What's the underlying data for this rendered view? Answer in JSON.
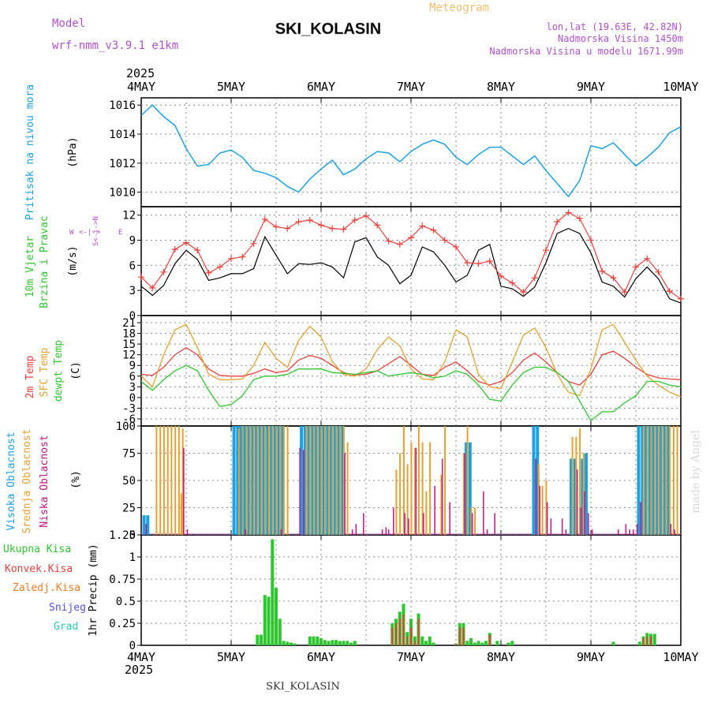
{
  "header": {
    "model_label": "Model",
    "model_name": "wrf-nmm_v3.9.1 e1km",
    "station": "SKI_KOLASIN",
    "app_title": "Meteogram",
    "lonlat": "lon,lat (19.63E, 42.82N)",
    "altitude": "Nadmorska Visina 1450m",
    "model_altitude": "Nadmorska Visina u modelu 1671.99m",
    "year_top": "2025",
    "year_bottom": "2025",
    "footer_station": "SKI_KOLASIN",
    "watermark": "made by Angel"
  },
  "colors": {
    "pressure": "#1ba1e2",
    "wind_speed": "#000000",
    "wind_gust": "#e8413a",
    "temp2m": "#e8413a",
    "sfc_temp": "#e6a030",
    "dewpt": "#2ec62e",
    "cloud_high": "#1ba1e2",
    "cloud_mid": "#e6a030",
    "cloud_low": "#c0157f",
    "precip_total": "#2ec62e",
    "precip_conv": "#e8413a",
    "precip_frozen": "#f07c24",
    "snow": "#5050e6",
    "graupel": "#28c8b4",
    "label_purple": "#b050d0",
    "label_gold": "#f0c070"
  },
  "chart_data": [
    {
      "type": "line",
      "name": "pressure",
      "ylabel": "(hPa)",
      "side_label": "Pritisak na nivou mora",
      "ylim": [
        1009,
        1016.5
      ],
      "yticks": [
        1010,
        1012,
        1014,
        1016
      ],
      "x_hours": [
        0,
        3,
        6,
        9,
        12,
        15,
        18,
        21,
        24,
        27,
        30,
        33,
        36,
        39,
        42,
        45,
        48,
        51,
        54,
        57,
        60,
        63,
        66,
        69,
        72,
        75,
        78,
        81,
        84,
        87,
        90,
        93,
        96,
        99,
        102,
        105,
        108,
        111,
        114,
        117,
        120,
        123,
        126,
        129,
        132,
        135,
        138,
        141,
        144
      ],
      "values": [
        1015.3,
        1016.0,
        1015.2,
        1014.6,
        1013.0,
        1011.8,
        1011.9,
        1012.7,
        1012.9,
        1012.4,
        1011.5,
        1011.3,
        1011.0,
        1010.4,
        1010.0,
        1010.9,
        1011.6,
        1012.2,
        1011.2,
        1011.6,
        1012.3,
        1012.8,
        1012.7,
        1012.1,
        1012.8,
        1013.3,
        1013.6,
        1013.3,
        1012.4,
        1011.9,
        1012.6,
        1013.1,
        1013.1,
        1012.5,
        1011.9,
        1012.5,
        1011.5,
        1010.6,
        1009.7,
        1010.8,
        1013.2,
        1013.0,
        1013.4,
        1012.6,
        1011.8,
        1012.4,
        1013.1,
        1014.1,
        1014.5
      ]
    },
    {
      "type": "line",
      "name": "wind",
      "ylabel": "(m/s)",
      "side_label_1": "10m Vjetar",
      "side_label_2": "Brzina i Pravac",
      "compass": {
        "s": "S<-|->N",
        "w": "W",
        "arrow": "<-|->",
        "e": "E"
      },
      "ylim": [
        0,
        13
      ],
      "yticks": [
        0,
        3,
        6,
        9,
        12
      ],
      "x_hours": [
        0,
        3,
        6,
        9,
        12,
        15,
        18,
        21,
        24,
        27,
        30,
        33,
        36,
        39,
        42,
        45,
        48,
        51,
        54,
        57,
        60,
        63,
        66,
        69,
        72,
        75,
        78,
        81,
        84,
        87,
        90,
        93,
        96,
        99,
        102,
        105,
        108,
        111,
        114,
        117,
        120,
        123,
        126,
        129,
        132,
        135,
        138,
        141,
        144
      ],
      "series": [
        {
          "key": "speed",
          "values": [
            3.5,
            2.4,
            3.6,
            6.2,
            7.8,
            6.7,
            4.2,
            4.5,
            5.0,
            5.0,
            5.6,
            9.4,
            7.2,
            5.0,
            6.2,
            6.1,
            6.3,
            5.8,
            4.5,
            8.8,
            9.3,
            7.0,
            6.0,
            3.8,
            4.8,
            8.2,
            7.6,
            6.0,
            4.0,
            4.8,
            7.8,
            8.5,
            3.5,
            3.2,
            2.3,
            3.4,
            6.3,
            9.8,
            10.4,
            9.8,
            7.5,
            4.0,
            3.5,
            2.2,
            4.4,
            5.8,
            4.4,
            2.0,
            1.5
          ]
        },
        {
          "key": "gust",
          "values": [
            4.6,
            3.3,
            5.2,
            7.9,
            8.7,
            7.8,
            5.1,
            5.8,
            6.8,
            7.0,
            8.6,
            11.5,
            10.6,
            10.4,
            11.2,
            11.4,
            10.8,
            10.4,
            10.3,
            11.4,
            11.9,
            10.8,
            8.9,
            8.5,
            9.3,
            10.7,
            10.2,
            9.0,
            8.2,
            6.3,
            6.2,
            6.5,
            4.7,
            3.9,
            2.8,
            4.5,
            7.8,
            11.2,
            12.3,
            11.6,
            9.0,
            5.3,
            4.5,
            2.8,
            5.8,
            6.8,
            5.2,
            2.9,
            2.0
          ]
        }
      ]
    },
    {
      "type": "line",
      "name": "temperature",
      "ylabel": "(C)",
      "side_labels": [
        "2m Temp",
        "SFC Temp",
        "dewpt Temp"
      ],
      "ylim": [
        -8,
        23
      ],
      "yticks": [
        -6,
        -3,
        0,
        3,
        6,
        9,
        12,
        15,
        18,
        21
      ],
      "x_hours": [
        0,
        3,
        6,
        9,
        12,
        15,
        18,
        21,
        24,
        27,
        30,
        33,
        36,
        39,
        42,
        45,
        48,
        51,
        54,
        57,
        60,
        63,
        66,
        69,
        72,
        75,
        78,
        81,
        84,
        87,
        90,
        93,
        96,
        99,
        102,
        105,
        108,
        111,
        114,
        117,
        120,
        123,
        126,
        129,
        132,
        135,
        138,
        141,
        144
      ],
      "series": [
        {
          "key": "t2m",
          "values": [
            6.5,
            6.2,
            8.5,
            12.0,
            14.0,
            12.0,
            8.0,
            6.2,
            6.0,
            6.0,
            6.8,
            8.0,
            7.0,
            7.5,
            10.5,
            11.8,
            11.0,
            9.0,
            7.0,
            6.3,
            6.5,
            7.5,
            9.5,
            11.5,
            9.0,
            6.5,
            6.2,
            8.5,
            10.0,
            7.5,
            4.5,
            3.5,
            4.5,
            7.0,
            10.5,
            12.5,
            10.0,
            7.0,
            4.5,
            3.5,
            6.5,
            12.0,
            13.0,
            11.0,
            8.5,
            6.5,
            5.5,
            5.2,
            5.0
          ]
        },
        {
          "key": "sfc",
          "values": [
            6.0,
            3.0,
            12.0,
            19.0,
            20.5,
            14.0,
            6.5,
            5.0,
            5.0,
            5.2,
            9.0,
            15.5,
            11.0,
            8.5,
            16.0,
            20.0,
            17.0,
            10.0,
            6.5,
            6.0,
            8.0,
            13.5,
            17.0,
            14.5,
            8.0,
            5.2,
            5.0,
            10.0,
            19.0,
            17.0,
            6.5,
            3.0,
            2.5,
            10.0,
            17.5,
            19.5,
            14.0,
            6.5,
            1.5,
            0.5,
            8.0,
            19.0,
            20.5,
            15.5,
            10.5,
            6.0,
            3.5,
            1.5,
            0.2
          ]
        },
        {
          "key": "dewpt",
          "values": [
            4.5,
            2.0,
            5.0,
            7.5,
            9.0,
            7.5,
            2.0,
            -2.5,
            -2.0,
            0.5,
            5.0,
            6.0,
            6.0,
            6.5,
            8.0,
            8.0,
            8.0,
            7.0,
            6.8,
            6.5,
            7.0,
            7.5,
            6.0,
            6.5,
            7.0,
            6.5,
            5.5,
            6.0,
            7.5,
            6.5,
            3.5,
            -0.5,
            -1.0,
            3.5,
            7.0,
            8.5,
            8.5,
            7.0,
            4.5,
            -1.0,
            -6.5,
            -4.0,
            -4.0,
            -1.5,
            0.5,
            4.5,
            4.5,
            3.5,
            3.0
          ]
        }
      ]
    },
    {
      "type": "bar",
      "name": "clouds",
      "ylabel": "(%)",
      "side_labels": [
        "Visoka Oblacnost",
        "Srednja Oblacnost",
        "Niska Oblacnost"
      ],
      "ylim": [
        0,
        100
      ],
      "yticks": [
        0,
        25,
        50,
        75,
        100
      ],
      "series": [
        {
          "key": "high",
          "hours": [
            1,
            2,
            25,
            26,
            26.5,
            27,
            27.5,
            28,
            29,
            30,
            31,
            32,
            33,
            34,
            35,
            36,
            37,
            38,
            43,
            44,
            45,
            46,
            47,
            48,
            49,
            50,
            51,
            52,
            53,
            54,
            87,
            88,
            105,
            106,
            115,
            116,
            118,
            119,
            133,
            134,
            135,
            136,
            137,
            138,
            139,
            140,
            141
          ],
          "values": [
            18,
            18,
            100,
            100,
            100,
            100,
            100,
            100,
            100,
            100,
            100,
            100,
            100,
            100,
            100,
            100,
            100,
            100,
            100,
            100,
            100,
            100,
            100,
            100,
            100,
            100,
            100,
            100,
            100,
            100,
            85,
            85,
            100,
            100,
            70,
            70,
            70,
            75,
            100,
            100,
            100,
            100,
            100,
            100,
            100,
            100,
            100
          ]
        },
        {
          "key": "mid",
          "hours": [
            4,
            5,
            6,
            7,
            8,
            9,
            10,
            10.6,
            11,
            26,
            27,
            28,
            29,
            30,
            31,
            32,
            33,
            34,
            35,
            36,
            37,
            38,
            39,
            44,
            45,
            46,
            47,
            48,
            49,
            50,
            51,
            52,
            53,
            54,
            55,
            68,
            69,
            70,
            71,
            72,
            73,
            74,
            75,
            76,
            77,
            80,
            81,
            86,
            87,
            88,
            89,
            106,
            107,
            108,
            115,
            116,
            117,
            118,
            134,
            135,
            136,
            137,
            138,
            139,
            140,
            141,
            142,
            143
          ],
          "values": [
            100,
            100,
            100,
            100,
            100,
            100,
            100,
            38,
            98,
            98,
            100,
            100,
            100,
            100,
            100,
            100,
            100,
            100,
            100,
            100,
            100,
            100,
            100,
            100,
            100,
            100,
            100,
            100,
            100,
            100,
            100,
            100,
            100,
            100,
            85,
            60,
            75,
            100,
            65,
            85,
            80,
            100,
            85,
            40,
            85,
            55,
            100,
            75,
            100,
            25,
            25,
            65,
            45,
            50,
            90,
            90,
            98,
            75,
            100,
            100,
            100,
            100,
            100,
            100,
            100,
            100,
            100,
            100
          ]
        },
        {
          "key": "low",
          "hours": [
            1,
            11,
            12,
            27.5,
            37,
            42,
            43,
            54,
            56,
            57,
            59,
            64,
            65,
            65.7,
            67,
            70,
            71,
            73,
            75,
            78,
            80,
            82,
            86,
            88,
            91,
            92,
            94,
            105,
            106,
            108,
            109,
            112,
            113,
            116,
            117,
            118,
            119,
            120,
            127,
            129,
            130,
            131,
            132,
            133,
            141,
            142
          ],
          "values": [
            10,
            80,
            5,
            5,
            5,
            80,
            78,
            75,
            5,
            10,
            20,
            5,
            7,
            5,
            25,
            20,
            15,
            80,
            20,
            45,
            70,
            30,
            75,
            20,
            40,
            5,
            20,
            70,
            45,
            30,
            15,
            15,
            5,
            60,
            25,
            40,
            20,
            5,
            5,
            10,
            5,
            5,
            10,
            30,
            10,
            5
          ]
        }
      ]
    },
    {
      "type": "bar",
      "name": "precipitation",
      "ylabel": "1hr Precip (mm)",
      "legend": [
        "Ukupna Kisa",
        "Konvek.Kisa",
        "Zaledj.Kisa",
        "Snijeg",
        "Grad"
      ],
      "ylim": [
        0,
        1.25
      ],
      "yticks": [
        0,
        0.25,
        0.5,
        0.75,
        1,
        1.25
      ],
      "series": [
        {
          "key": "total",
          "hours": [
            31,
            32,
            33,
            34,
            35,
            36,
            37,
            38,
            39,
            40,
            41,
            45,
            46,
            47,
            48,
            49,
            50,
            51,
            52,
            53,
            54,
            55,
            56,
            57,
            67,
            68,
            69,
            70,
            71,
            72,
            73,
            74,
            75,
            76,
            77,
            78,
            84,
            85,
            86,
            87,
            88,
            89,
            90,
            91,
            92,
            93,
            95,
            98,
            99,
            126,
            133,
            134,
            135,
            136,
            137
          ],
          "values": [
            0.12,
            0.12,
            0.57,
            0.55,
            1.2,
            0.65,
            0.3,
            0.05,
            0.04,
            0.03,
            0.02,
            0.1,
            0.1,
            0.1,
            0.08,
            0.06,
            0.05,
            0.06,
            0.06,
            0.05,
            0.05,
            0.05,
            0.03,
            0.05,
            0.25,
            0.3,
            0.38,
            0.47,
            0.15,
            0.3,
            0.1,
            0.36,
            0.1,
            0.05,
            0.1,
            0.03,
            0.02,
            0.25,
            0.25,
            0.05,
            0.08,
            0.03,
            0.05,
            0.03,
            0.05,
            0.14,
            0.05,
            0.03,
            0.05,
            0.04,
            0.04,
            0.1,
            0.14,
            0.13,
            0.13
          ]
        },
        {
          "key": "conv",
          "hours": [
            67,
            68,
            69,
            70,
            71,
            72,
            73,
            74,
            84,
            85,
            86,
            93,
            134,
            135,
            136
          ],
          "values": [
            0.2,
            0.25,
            0.3,
            0.35,
            0.1,
            0.2,
            0.05,
            0.3,
            0.02,
            0.2,
            0.2,
            0.12,
            0.08,
            0.1,
            0.1
          ]
        }
      ]
    }
  ],
  "x_axis": {
    "labels": [
      "4MAY",
      "5MAY",
      "6MAY",
      "7MAY",
      "8MAY",
      "9MAY",
      "10MAY"
    ],
    "range_hours": [
      0,
      144
    ]
  }
}
